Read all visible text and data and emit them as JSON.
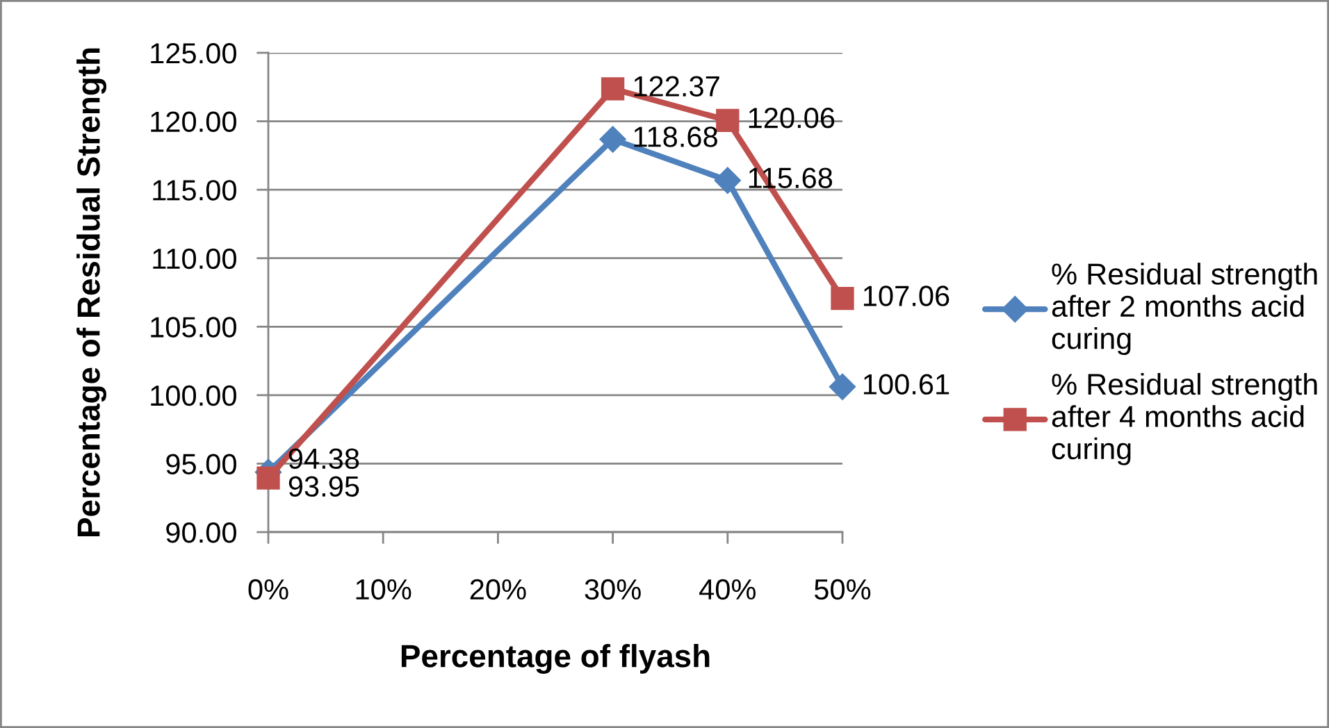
{
  "chart_data": {
    "type": "line",
    "xlabel": "Percentage of flyash",
    "ylabel": "Percentage of Residual Strength",
    "x": [
      0,
      30,
      40,
      50
    ],
    "series": [
      {
        "name": "% Residual strength after 2 months acid curing",
        "color": "#4f81bd",
        "marker": "diamond",
        "values": [
          94.38,
          118.68,
          115.68,
          100.61
        ]
      },
      {
        "name": "% Residual strength after 4 months acid curing",
        "color": "#c0504d",
        "marker": "square",
        "values": [
          93.95,
          122.37,
          120.06,
          107.06
        ]
      }
    ],
    "xlim": [
      0,
      50
    ],
    "xticks": [
      {
        "value": 0,
        "label": "0%"
      },
      {
        "value": 10,
        "label": "10%"
      },
      {
        "value": 20,
        "label": "20%"
      },
      {
        "value": 30,
        "label": "30%"
      },
      {
        "value": 40,
        "label": "40%"
      },
      {
        "value": 50,
        "label": "50%"
      }
    ],
    "ylim": [
      90,
      125
    ],
    "yticks": [
      {
        "value": 90,
        "label": "90.00"
      },
      {
        "value": 95,
        "label": "95.00"
      },
      {
        "value": 100,
        "label": "100.00"
      },
      {
        "value": 105,
        "label": "105.00"
      },
      {
        "value": 110,
        "label": "110.00"
      },
      {
        "value": 115,
        "label": "115.00"
      },
      {
        "value": 120,
        "label": "120.00"
      },
      {
        "value": 125,
        "label": "125.00"
      }
    ],
    "grid": "y",
    "legend": "right",
    "data_labels": true,
    "line_style": "solid"
  }
}
